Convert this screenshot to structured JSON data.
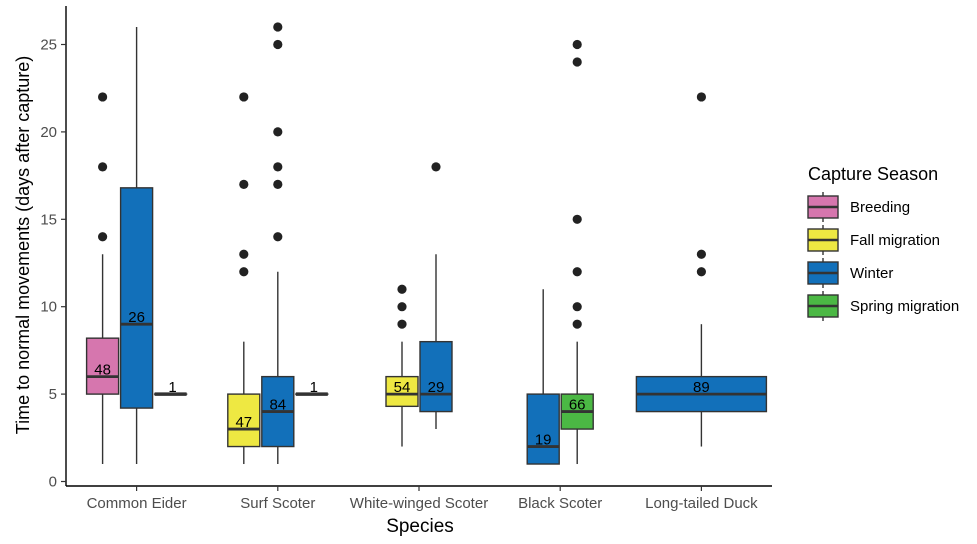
{
  "chart_data": {
    "type": "boxplot",
    "title": "",
    "xlabel": "Species",
    "ylabel": "Time to normal movements (days after capture)",
    "ylim": [
      -0.3,
      26.8
    ],
    "yticks": [
      0,
      5,
      10,
      15,
      20,
      25
    ],
    "grid": false,
    "legend": {
      "title": "Capture Season",
      "position": "right"
    },
    "categories": [
      "Common Eider",
      "Surf Scoter",
      "White-winged Scoter",
      "Black Scoter",
      "Long-tailed Duck"
    ],
    "seasons": [
      {
        "name": "Breeding",
        "color": "#D676AE"
      },
      {
        "name": "Fall migration",
        "color": "#EEE842"
      },
      {
        "name": "Winter",
        "color": "#1270BA"
      },
      {
        "name": "Spring migration",
        "color": "#4BB844"
      }
    ],
    "boxes": [
      {
        "species": "Common Eider",
        "season": "Breeding",
        "n": "48",
        "min": 1,
        "q1": 5,
        "median": 6,
        "q3": 8.2,
        "max": 13,
        "outliers": [
          14,
          18,
          22
        ]
      },
      {
        "species": "Common Eider",
        "season": "Winter",
        "n": "26",
        "min": 1,
        "q1": 4.2,
        "median": 9,
        "q3": 16.8,
        "max": 26,
        "outliers": []
      },
      {
        "species": "Common Eider",
        "season": "Spring migration",
        "n": "1",
        "min": 5,
        "q1": 5,
        "median": 5,
        "q3": 5,
        "max": 5,
        "outliers": []
      },
      {
        "species": "Surf Scoter",
        "season": "Fall migration",
        "n": "47",
        "min": 1,
        "q1": 2,
        "median": 3,
        "q3": 5,
        "max": 8,
        "outliers": [
          12,
          13,
          17,
          22
        ]
      },
      {
        "species": "Surf Scoter",
        "season": "Winter",
        "n": "84",
        "min": 1,
        "q1": 2,
        "median": 4,
        "q3": 6,
        "max": 12,
        "outliers": [
          14,
          17,
          18,
          20,
          25,
          26
        ]
      },
      {
        "species": "Surf Scoter",
        "season": "Spring migration",
        "n": "1",
        "min": 5,
        "q1": 5,
        "median": 5,
        "q3": 5,
        "max": 5,
        "outliers": []
      },
      {
        "species": "White-winged Scoter",
        "season": "Fall migration",
        "n": "54",
        "min": 2,
        "q1": 4.3,
        "median": 5,
        "q3": 6,
        "max": 8,
        "outliers": [
          9,
          10,
          11
        ]
      },
      {
        "species": "White-winged Scoter",
        "season": "Winter",
        "n": "29",
        "min": 3,
        "q1": 4,
        "median": 5,
        "q3": 8,
        "max": 13,
        "outliers": [
          18
        ]
      },
      {
        "species": "Black Scoter",
        "season": "Winter",
        "n": "19",
        "min": 1,
        "q1": 1,
        "median": 2,
        "q3": 5,
        "max": 11,
        "outliers": []
      },
      {
        "species": "Black Scoter",
        "season": "Spring migration",
        "n": "66",
        "min": 1,
        "q1": 3,
        "median": 4,
        "q3": 5,
        "max": 8,
        "outliers": [
          9,
          10,
          12,
          15,
          24,
          25
        ]
      },
      {
        "species": "Long-tailed Duck",
        "season": "Winter",
        "n": "89",
        "min": 2,
        "q1": 4,
        "median": 5,
        "q3": 6,
        "max": 9,
        "outliers": [
          12,
          13,
          22
        ]
      }
    ]
  }
}
